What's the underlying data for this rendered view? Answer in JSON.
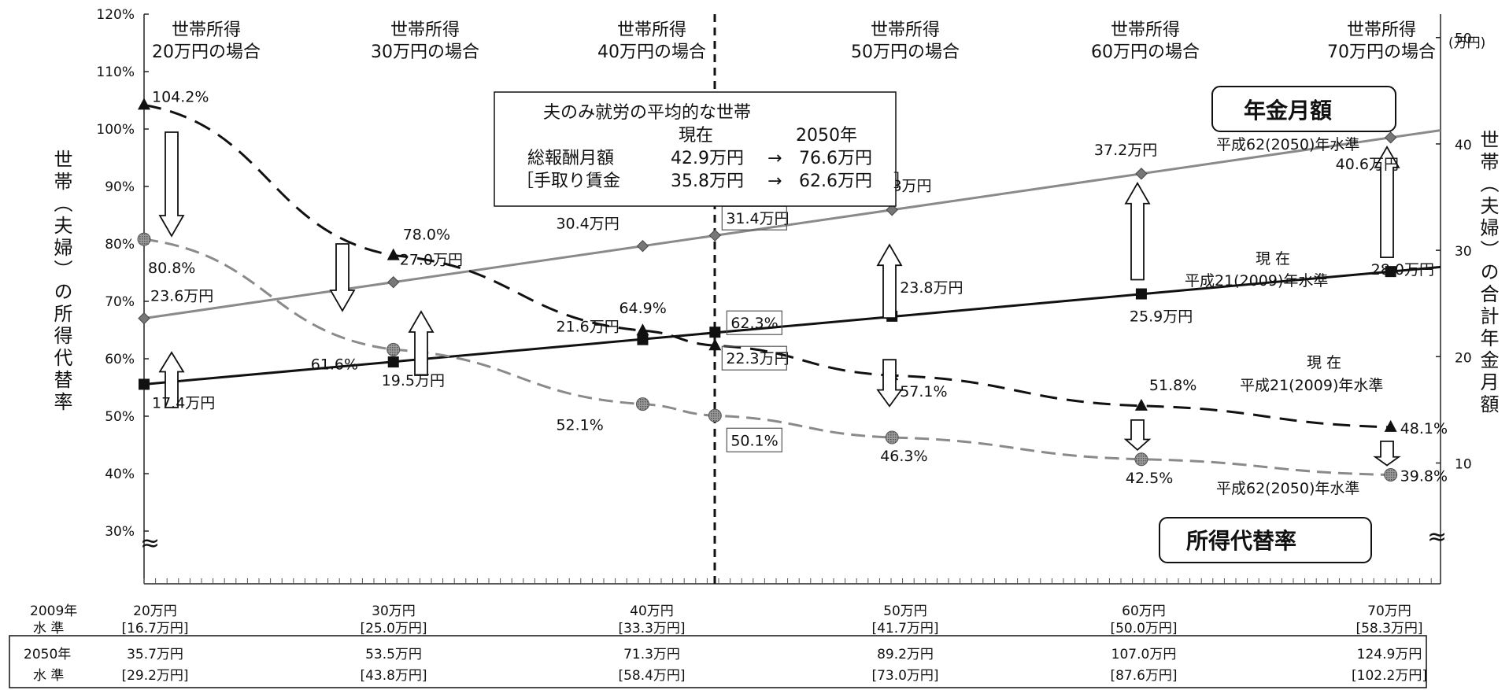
{
  "chart_data": {
    "type": "line",
    "x": [
      20,
      30,
      40,
      50,
      60,
      70
    ],
    "x_range": [
      20,
      72
    ],
    "y_left": {
      "label": "世帯（夫婦）の所得代替率",
      "ticks": [
        "120%",
        "110%",
        "100%",
        "90%",
        "80%",
        "70%",
        "60%",
        "50%",
        "40%",
        "30%"
      ],
      "range": [
        30,
        120
      ],
      "break_mark": "≈"
    },
    "y_right": {
      "label": "世帯（夫婦）の合計年金月額",
      "unit": "(万円)",
      "ticks": [
        "50",
        "40",
        "30",
        "20",
        "10"
      ],
      "range": [
        3.6,
        52.2
      ],
      "break_mark": "≈"
    },
    "column_headers": [
      {
        "line1": "世帯所得",
        "line2": "20万円の場合"
      },
      {
        "line1": "世帯所得",
        "line2": "30万円の場合"
      },
      {
        "line1": "世帯所得",
        "line2": "40万円の場合"
      },
      {
        "line1": "世帯所得",
        "line2": "50万円の場合"
      },
      {
        "line1": "世帯所得",
        "line2": "60万円の場合"
      },
      {
        "line1": "世帯所得",
        "line2": "70万円の場合"
      }
    ],
    "series": [
      {
        "name": "年金月額 平成62(2050)年水準",
        "axis": "right",
        "style": "solid-gray",
        "marker": "diamond",
        "x": [
          20,
          30,
          40,
          42.9,
          50,
          60,
          70
        ],
        "values": [
          23.6,
          27.0,
          30.4,
          31.4,
          33.8,
          37.2,
          40.6
        ],
        "labels": [
          "23.6万円",
          "27.0万円",
          "30.4万円",
          "31.4万円",
          "33.8万円",
          "37.2万円",
          "40.6万円"
        ]
      },
      {
        "name": "年金月額 現在 平成21(2009)年水準",
        "axis": "right",
        "style": "solid-black",
        "marker": "square",
        "x": [
          20,
          30,
          40,
          42.9,
          50,
          60,
          70
        ],
        "values": [
          17.4,
          19.5,
          21.6,
          22.3,
          23.8,
          25.9,
          28.0
        ],
        "labels": [
          "17.4万円",
          "19.5万円",
          "21.6万円",
          "22.3万円",
          "23.8万円",
          "25.9万円",
          "28.0万円"
        ]
      },
      {
        "name": "所得代替率 現在 平成21(2009)年水準",
        "axis": "left",
        "style": "dashed-black",
        "marker": "triangle",
        "x": [
          20,
          30,
          40,
          42.9,
          50,
          60,
          70
        ],
        "values": [
          104.2,
          78.0,
          64.9,
          62.3,
          57.1,
          51.8,
          48.1
        ],
        "labels": [
          "104.2%",
          "78.0%",
          "64.9%",
          "62.3%",
          "57.1%",
          "51.8%",
          "48.1%"
        ]
      },
      {
        "name": "所得代替率 平成62(2050)年水準",
        "axis": "left",
        "style": "dashed-gray",
        "marker": "circle",
        "x": [
          20,
          30,
          40,
          42.9,
          50,
          60,
          70
        ],
        "values": [
          80.8,
          61.6,
          52.1,
          50.1,
          46.3,
          42.5,
          39.8
        ],
        "labels": [
          "80.8%",
          "61.6%",
          "52.1%",
          "50.1%",
          "46.3%",
          "42.5%",
          "39.8%"
        ]
      }
    ],
    "series_labels": {
      "pension_box": "年金月額",
      "pension_2050": "平成62(2050)年水準",
      "pension_now_1": "現 在",
      "pension_now_2": "平成21(2009)年水準",
      "ratio_box": "所得代替率",
      "ratio_now_1": "現 在",
      "ratio_now_2": "平成21(2009)年水準",
      "ratio_2050": "平成62(2050)年水準"
    },
    "average_household": {
      "x": 42.9,
      "title": "夫のみ就労の平均的な世帯",
      "col_now": "現在",
      "col_2050": "2050年",
      "row1_label": "総報酬月額",
      "row1_now": "42.9万円",
      "row1_2050": "76.6万円",
      "row2_label": "［手取り賃金",
      "row2_now": "35.8万円",
      "row2_2050": "62.6万円",
      "row2_end": "］",
      "arrow": "→"
    },
    "bottom_table": {
      "row2009_label1": "2009年",
      "row2009_label2": "水 準",
      "row2050_label1": "2050年",
      "row2050_label2": "水 準",
      "cols": [
        {
          "y2009": "20万円",
          "y2009_sub": "[16.7万円]",
          "y2050": "35.7万円",
          "y2050_sub": "[29.2万円]"
        },
        {
          "y2009": "30万円",
          "y2009_sub": "[25.0万円]",
          "y2050": "53.5万円",
          "y2050_sub": "[43.8万円]"
        },
        {
          "y2009": "40万円",
          "y2009_sub": "[33.3万円]",
          "y2050": "71.3万円",
          "y2050_sub": "[58.4万円]"
        },
        {
          "y2009": "50万円",
          "y2009_sub": "[41.7万円]",
          "y2050": "89.2万円",
          "y2050_sub": "[73.0万円]"
        },
        {
          "y2009": "60万円",
          "y2009_sub": "[50.0万円]",
          "y2050": "107.0万円",
          "y2050_sub": "[87.6万円]"
        },
        {
          "y2009": "70万円",
          "y2009_sub": "[58.3万円]",
          "y2050": "124.9万円",
          "y2050_sub": "[102.2万円]"
        }
      ]
    }
  }
}
